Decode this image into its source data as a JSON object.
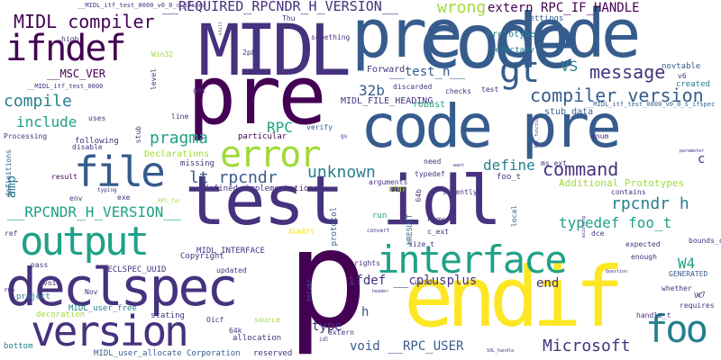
{
  "palette": {
    "navy": "#46327e",
    "dark": "#440154",
    "blue": "#365c8d",
    "teal": "#277f8e",
    "green": "#1fa187",
    "lime": "#4ac16d",
    "yellowgreen": "#a0da39",
    "yellow": "#fde725"
  },
  "words": [
    {
      "text": "p",
      "color": "dark"
    },
    {
      "text": "pre",
      "color": "dark"
    },
    {
      "text": "code",
      "color": "blue"
    },
    {
      "text": "pre code",
      "color": "blue"
    },
    {
      "text": "code pre",
      "color": "blue"
    },
    {
      "text": "test idl",
      "color": "navy"
    },
    {
      "text": "endif",
      "color": "yellow"
    },
    {
      "text": "MIDL",
      "color": "navy"
    },
    {
      "text": "declspec",
      "color": "navy"
    },
    {
      "text": "version",
      "color": "navy"
    },
    {
      "text": "interface",
      "color": "green"
    },
    {
      "text": "output",
      "color": "green"
    },
    {
      "text": "file",
      "color": "blue"
    },
    {
      "text": "ifndef",
      "color": "dark"
    },
    {
      "text": "error",
      "color": "yellowgreen"
    },
    {
      "text": "foo",
      "color": "teal"
    },
    {
      "text": "gt",
      "color": "blue"
    },
    {
      "text": "command",
      "color": "navy"
    },
    {
      "text": "compiler version",
      "color": "blue"
    },
    {
      "text": "MIDL compiler",
      "color": "dark"
    },
    {
      "text": "__REQUIRED_RPCNDR_H_VERSION__",
      "color": "navy"
    },
    {
      "text": "wrong",
      "color": "yellowgreen"
    },
    {
      "text": "extern RPC_IF_HANDLE",
      "color": "dark"
    },
    {
      "text": "message",
      "color": "navy"
    },
    {
      "text": "VS",
      "color": "teal"
    },
    {
      "text": "32b",
      "color": "blue"
    },
    {
      "text": "__test_h__",
      "color": "blue"
    },
    {
      "text": "include",
      "color": "green"
    },
    {
      "text": "compile",
      "color": "teal"
    },
    {
      "text": "pragma",
      "color": "green"
    },
    {
      "text": "RPC",
      "color": "green"
    },
    {
      "text": "lt rpcndr",
      "color": "blue"
    },
    {
      "text": "unknown",
      "color": "teal"
    },
    {
      "text": "define",
      "color": "teal"
    },
    {
      "text": "rpcndr h",
      "color": "teal"
    },
    {
      "text": "typedef foo_t",
      "color": "green"
    },
    {
      "text": "W4",
      "color": "green"
    },
    {
      "text": "end",
      "color": "navy"
    },
    {
      "text": "ifdef __cplusplus",
      "color": "navy"
    },
    {
      "text": "__RPCNDR_H_VERSION__",
      "color": "green"
    },
    {
      "text": "amp",
      "color": "teal"
    },
    {
      "text": "type",
      "color": "navy"
    },
    {
      "text": "void __RPC_USER",
      "color": "blue"
    },
    {
      "text": "Microsoft",
      "color": "navy"
    },
    {
      "text": "h",
      "color": "blue"
    },
    {
      "text": "Additional Prototypes",
      "color": "yellowgreen"
    },
    {
      "text": "c",
      "color": "navy"
    },
    {
      "text": "__MSC_VER",
      "color": "dark"
    },
    {
      "text": "Forward",
      "color": "navy"
    },
    {
      "text": "MIDL_FILE_HEADING",
      "color": "navy"
    },
    {
      "text": "robust",
      "color": "green"
    },
    {
      "text": "stub_data",
      "color": "blue"
    },
    {
      "text": "Prototype",
      "color": "teal"
    },
    {
      "text": "selectany",
      "color": "teal"
    },
    {
      "text": "novtable",
      "color": "blue"
    },
    {
      "text": "settings",
      "color": "blue"
    },
    {
      "text": "created",
      "color": "teal"
    },
    {
      "text": "Declarations",
      "color": "yellowgreen"
    },
    {
      "text": "particular",
      "color": "dark"
    },
    {
      "text": "missing",
      "color": "navy"
    },
    {
      "text": "defined",
      "color": "navy"
    },
    {
      "text": "implementations",
      "color": "navy"
    },
    {
      "text": "MIDL_INTERFACE",
      "color": "navy"
    },
    {
      "text": "Copyright",
      "color": "navy"
    },
    {
      "text": "DECLSPEC_UUID",
      "color": "navy"
    },
    {
      "text": "MIDL_user_free",
      "color": "teal"
    },
    {
      "text": "MIDL_user_allocate",
      "color": "blue"
    },
    {
      "text": "Corporation",
      "color": "blue"
    },
    {
      "text": "allocation",
      "color": "navy"
    },
    {
      "text": "reserved",
      "color": "navy"
    },
    {
      "text": "stating",
      "color": "navy"
    },
    {
      "text": "decoration",
      "color": "yellowgreen"
    },
    {
      "text": "project",
      "color": "teal"
    },
    {
      "text": "bottom",
      "color": "teal"
    },
    {
      "text": "Processing",
      "color": "navy"
    },
    {
      "text": "following",
      "color": "navy"
    },
    {
      "text": "result",
      "color": "dark"
    },
    {
      "text": "exe",
      "color": "navy"
    },
    {
      "text": "env",
      "color": "navy"
    },
    {
      "text": "ref",
      "color": "navy"
    },
    {
      "text": "pass",
      "color": "navy"
    },
    {
      "text": "void",
      "color": "navy"
    },
    {
      "text": "updated",
      "color": "navy"
    },
    {
      "text": "Nov",
      "color": "navy"
    },
    {
      "text": "source",
      "color": "yellowgreen"
    },
    {
      "text": "Oicf",
      "color": "navy"
    },
    {
      "text": "64k",
      "color": "navy"
    },
    {
      "text": "extern",
      "color": "navy"
    },
    {
      "text": "run",
      "color": "green"
    },
    {
      "text": "know",
      "color": "navy"
    },
    {
      "text": "c_ext",
      "color": "navy"
    },
    {
      "text": "size_t",
      "color": "navy"
    },
    {
      "text": "rights",
      "color": "navy"
    },
    {
      "text": "arguments",
      "color": "navy"
    },
    {
      "text": "silently",
      "color": "navy"
    },
    {
      "text": "typedef",
      "color": "navy"
    },
    {
      "text": "need",
      "color": "navy"
    },
    {
      "text": "UINT",
      "color": "yellowgreen"
    },
    {
      "text": "foo_t",
      "color": "navy"
    },
    {
      "text": "ms_ext",
      "color": "navy"
    },
    {
      "text": "contains",
      "color": "navy"
    },
    {
      "text": "dce",
      "color": "navy"
    },
    {
      "text": "expected",
      "color": "navy"
    },
    {
      "text": "enough",
      "color": "navy"
    },
    {
      "text": "whether",
      "color": "navy"
    },
    {
      "text": "bounds_check",
      "color": "navy"
    },
    {
      "text": "GENERATED",
      "color": "blue"
    },
    {
      "text": "VC",
      "color": "navy"
    },
    {
      "text": "requires",
      "color": "navy"
    },
    {
      "text": "handle_t",
      "color": "navy"
    },
    {
      "text": "enum",
      "color": "navy"
    },
    {
      "text": "ALWAYS",
      "color": "yellow"
    },
    {
      "text": "verify",
      "color": "blue"
    },
    {
      "text": "discarded",
      "color": "navy"
    },
    {
      "text": "checks",
      "color": "navy"
    },
    {
      "text": "test",
      "color": "navy"
    },
    {
      "text": "something",
      "color": "navy"
    },
    {
      "text": "Win32",
      "color": "yellowgreen"
    },
    {
      "text": "high",
      "color": "navy"
    },
    {
      "text": "uses",
      "color": "navy"
    },
    {
      "text": "line",
      "color": "navy"
    },
    {
      "text": "got",
      "color": "navy"
    },
    {
      "text": "disable",
      "color": "navy"
    },
    {
      "text": "__MIDL_itf_test_0000_v0_0_c_ifspec",
      "color": "navy"
    },
    {
      "text": "__MIDL_itf_test_0000_v0_0_s_ifspec",
      "color": "blue"
    },
    {
      "text": "__MIDL_itf_test_0000",
      "color": "navy"
    },
    {
      "text": "v6",
      "color": "navy"
    },
    {
      "text": "v7",
      "color": "navy"
    },
    {
      "text": "Thu",
      "color": "navy"
    },
    {
      "text": "2p8",
      "color": "navy"
    },
    {
      "text": "stub",
      "color": "navy"
    },
    {
      "text": "level",
      "color": "navy"
    },
    {
      "text": "definitions",
      "color": "blue"
    },
    {
      "text": "typing",
      "color": "navy"
    },
    {
      "text": "protocol",
      "color": "blue"
    },
    {
      "text": "server",
      "color": "blue"
    },
    {
      "text": "HRESULT",
      "color": "blue"
    },
    {
      "text": "local",
      "color": "blue"
    },
    {
      "text": "64b",
      "color": "navy"
    },
    {
      "text": "Question",
      "color": "navy"
    },
    {
      "text": "Plus",
      "color": "navy"
    },
    {
      "text": "header",
      "color": "navy"
    },
    {
      "text": "convert",
      "color": "navy"
    },
    {
      "text": "idl",
      "color": "navy"
    },
    {
      "text": "want",
      "color": "navy"
    },
    {
      "text": "still",
      "color": "navy"
    },
    {
      "text": "parameter",
      "color": "navy"
    },
    {
      "text": "existing",
      "color": "navy"
    },
    {
      "text": "RPC_function",
      "color": "navy"
    },
    {
      "text": "__RPC_far",
      "color": "yellowgreen"
    },
    {
      "text": "gu",
      "color": "navy"
    },
    {
      "text": "SOL_handle",
      "color": "navy"
    },
    {
      "text": "uuid",
      "color": "navy"
    }
  ]
}
